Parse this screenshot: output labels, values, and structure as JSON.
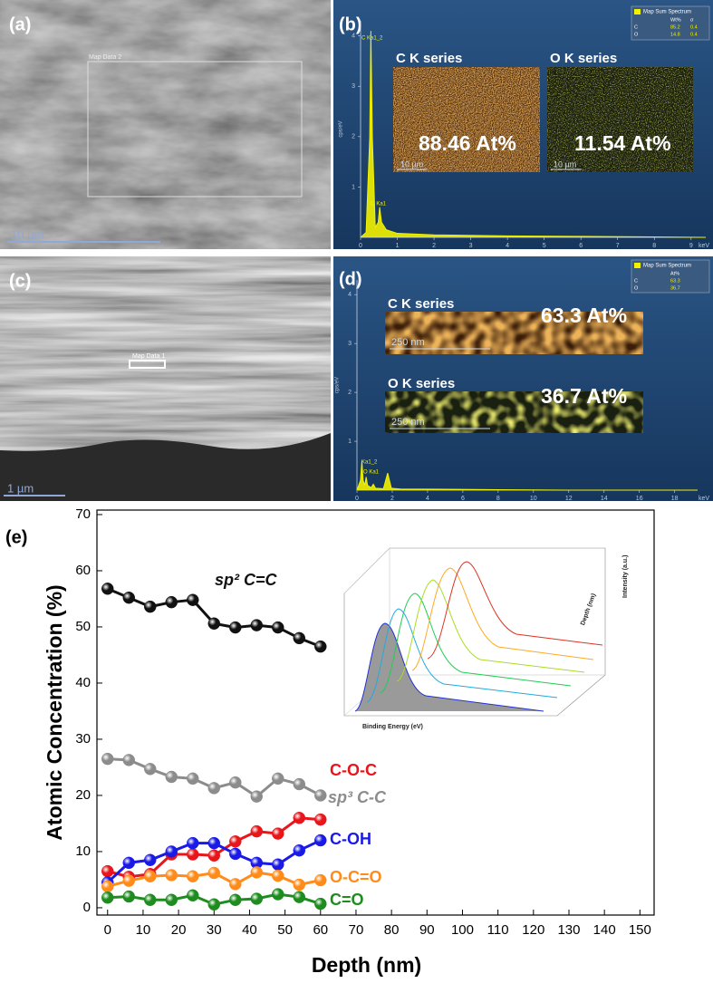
{
  "panels": {
    "a": {
      "label": "(a)",
      "region": "Map Data 2",
      "scale": "10 µm"
    },
    "b": {
      "label": "(b)",
      "legend": {
        "title": "Map Sum Spectrum",
        "header": [
          "Wt%",
          "σ"
        ],
        "rows": [
          [
            "C",
            85.2,
            0.4
          ],
          [
            "O",
            14.8,
            0.4
          ]
        ]
      },
      "peaks": [
        "C Ka1_2",
        "O Ka1"
      ],
      "maps": [
        {
          "title": "C K series",
          "value": "88.46 At%",
          "scale": "10 µm"
        },
        {
          "title": "O K series",
          "value": "11.54 At%",
          "scale": "10 µm"
        }
      ]
    },
    "c": {
      "label": "(c)",
      "region": "Map Data 1",
      "scale": "1 µm"
    },
    "d": {
      "label": "(d)",
      "legend": {
        "title": "Map Sum Spectrum",
        "header": [
          "At%"
        ],
        "rows": [
          [
            "C",
            63.3
          ],
          [
            "O",
            36.7
          ]
        ]
      },
      "peaks": [
        "Ka1_2",
        "O Ka1"
      ],
      "maps": [
        {
          "title": "C K series",
          "value": "63.3 At%",
          "scale": "250 nm"
        },
        {
          "title": "O K series",
          "value": "36.7 At%",
          "scale": "250 nm"
        }
      ]
    },
    "e": {
      "label": "(e)",
      "inset": {
        "xlabel": "Binding Energy (eV)",
        "ylabel": "Depth (nm)",
        "zlabel": "Intensity (a.u.)"
      }
    }
  },
  "chart_data": [
    {
      "type": "area",
      "color": "#f2f200",
      "xlabel": "keV",
      "ylabel": "cps/eV",
      "x": [
        0,
        0.15,
        0.25,
        0.28,
        0.32,
        0.4,
        0.48,
        0.52,
        0.57,
        0.7,
        1,
        2,
        4,
        6,
        8,
        9.4
      ],
      "values": [
        0,
        0.1,
        2,
        4.1,
        2,
        0.2,
        0.3,
        0.6,
        0.3,
        0.15,
        0.08,
        0.05,
        0.03,
        0.02,
        0.01,
        0
      ],
      "xlim": [
        0,
        9.4
      ],
      "ylim": [
        0,
        4.3
      ],
      "xticks": [
        0,
        1,
        2,
        3,
        4,
        5,
        6,
        7,
        8,
        9
      ],
      "yticks": [
        1,
        2,
        3,
        4
      ]
    },
    {
      "type": "area",
      "color": "#f2f200",
      "xlabel": "keV",
      "ylabel": "cps/eV",
      "x": [
        0,
        0.2,
        0.28,
        0.35,
        0.45,
        0.52,
        0.6,
        0.8,
        0.93,
        1.05,
        1.5,
        1.74,
        1.95,
        2.5,
        4,
        8,
        12,
        19.3
      ],
      "values": [
        0,
        0.2,
        0.6,
        0.2,
        0.1,
        0.27,
        0.1,
        0.05,
        0.12,
        0.04,
        0.03,
        0.35,
        0.04,
        0.02,
        0.02,
        0.01,
        0,
        0
      ],
      "xlim": [
        0,
        19.3
      ],
      "ylim": [
        0,
        4.3
      ],
      "xticks": [
        0,
        2,
        4,
        6,
        8,
        10,
        12,
        14,
        16,
        18
      ],
      "yticks": [
        1,
        2,
        3,
        4
      ]
    },
    {
      "type": "line",
      "xlabel": "Depth (nm)",
      "ylabel": "Atomic Concentration (%)",
      "x": [
        0,
        6,
        12,
        18,
        24,
        30,
        36,
        42,
        48,
        54,
        60
      ],
      "series": [
        {
          "name": "sp² C=C",
          "color": "#111111",
          "values": [
            56.8,
            55.2,
            53.6,
            54.4,
            54.8,
            50.6,
            49.9,
            50.3,
            49.9,
            48.0,
            46.5
          ]
        },
        {
          "name": "sp³ C-C",
          "color": "#8c8c8c",
          "values": [
            26.5,
            26.3,
            24.7,
            23.3,
            23.0,
            21.3,
            22.3,
            19.8,
            23.0,
            22.0,
            20.0
          ]
        },
        {
          "name": "C-O-C",
          "color": "#e8161b",
          "values": [
            6.5,
            5.5,
            6.0,
            9.5,
            9.5,
            9.3,
            11.8,
            13.6,
            13.2,
            16.0,
            15.7
          ]
        },
        {
          "name": "C-OH",
          "color": "#1a1ae6",
          "values": [
            4.5,
            8.0,
            8.5,
            10.0,
            11.5,
            11.5,
            9.6,
            8.0,
            7.7,
            10.2,
            12.0
          ]
        },
        {
          "name": "O-C=O",
          "color": "#ff8c1a",
          "values": [
            3.8,
            4.8,
            5.6,
            5.8,
            5.6,
            6.2,
            4.2,
            6.3,
            5.7,
            4.1,
            4.9
          ]
        },
        {
          "name": "C=O",
          "color": "#1e8c1e",
          "values": [
            1.8,
            2.0,
            1.4,
            1.4,
            2.2,
            0.6,
            1.4,
            1.6,
            2.4,
            1.9,
            0.7
          ]
        }
      ],
      "xlim": [
        -3,
        154
      ],
      "ylim": [
        -1.3,
        70.8
      ],
      "xticks": [
        0,
        10,
        20,
        30,
        40,
        50,
        60,
        70,
        80,
        90,
        100,
        110,
        120,
        130,
        140,
        150
      ],
      "yticks": [
        0,
        10,
        20,
        30,
        40,
        50,
        60,
        70
      ]
    }
  ]
}
